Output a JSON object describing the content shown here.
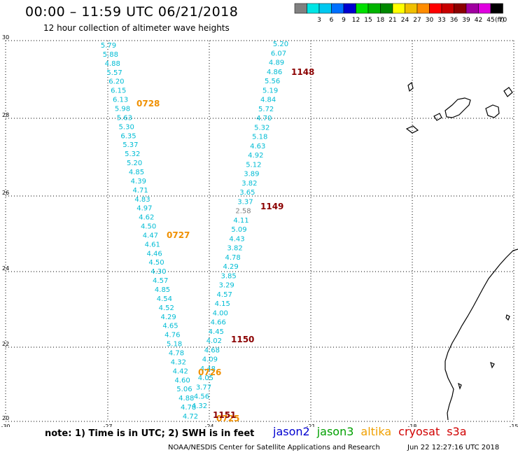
{
  "header": {
    "title": "00:00 – 11:59 UTC 06/21/2018",
    "subtitle": "12 hour collection of altimeter wave heights"
  },
  "color_scale": {
    "bins": [
      {
        "label": "",
        "color": "#808080"
      },
      {
        "label": "3",
        "color": "#00e5e5"
      },
      {
        "label": "6",
        "color": "#00c8f0"
      },
      {
        "label": "9",
        "color": "#0070ff"
      },
      {
        "label": "12",
        "color": "#0000d0"
      },
      {
        "label": "15",
        "color": "#00e000"
      },
      {
        "label": "18",
        "color": "#00b400"
      },
      {
        "label": "21",
        "color": "#008800"
      },
      {
        "label": "24",
        "color": "#ffff00"
      },
      {
        "label": "27",
        "color": "#f0c000"
      },
      {
        "label": "30",
        "color": "#ff8c00"
      },
      {
        "label": "33",
        "color": "#ff0000"
      },
      {
        "label": "36",
        "color": "#c80000"
      },
      {
        "label": "39",
        "color": "#8b0000"
      },
      {
        "label": "42",
        "color": "#a000a0"
      },
      {
        "label": "45",
        "color": "#e000e0"
      },
      {
        "label": "70",
        "color": "#000000"
      }
    ],
    "unit": "(ft)"
  },
  "axes": {
    "lon_ticks": [
      "-30",
      "-27",
      "-24",
      "-21",
      "-18",
      "-15"
    ],
    "lat_ticks": [
      "30",
      "28",
      "26",
      "24",
      "22",
      "20"
    ]
  },
  "tracks": {
    "west_track": {
      "color": "#00bcd4",
      "values": [
        "5.79",
        "5.88",
        "4.88",
        "5.57",
        "6.20",
        "6.15",
        "6.13",
        "5.98",
        "5.63",
        "5.30",
        "6.35",
        "5.37",
        "5.32",
        "5.20",
        "4.85",
        "4.39",
        "4.71",
        "4.83",
        "4.97",
        "4.62",
        "4.50",
        "4.47",
        "4.61",
        "4.46",
        "4.50",
        "4.30",
        "4.57",
        "4.85",
        "4.54",
        "4.52",
        "4.29",
        "4.65",
        "4.76",
        "5.18",
        "4.78",
        "4.32",
        "4.42",
        "4.60",
        "5.06",
        "4.88",
        "4.78",
        "4.72"
      ],
      "times": [
        {
          "label": "0728",
          "color": "#f09000"
        },
        {
          "label": "0727",
          "color": "#f09000"
        },
        {
          "label": "0726",
          "color": "#f09000"
        },
        {
          "label": "0725",
          "color": "#f09000"
        }
      ]
    },
    "east_track": {
      "color": "#00bcd4",
      "values": [
        "5.20",
        "6.07",
        "4.89",
        "4.86",
        "5.56",
        "5.19",
        "4.84",
        "5.72",
        "4.70",
        "5.32",
        "5.18",
        "4.63",
        "4.92",
        "5.12",
        "3.89",
        "3.82",
        "3.65",
        "3.37",
        "2.58",
        "4.11",
        "5.09",
        "4.43",
        "3.82",
        "4.78",
        "4.29",
        "3.85",
        "3.29",
        "4.57",
        "4.15",
        "4.00",
        "4.66",
        "4.45",
        "4.02",
        "4.68",
        "4.09",
        "4.48",
        "4.05",
        "3.77",
        "4.56",
        "4.32"
      ],
      "special_value_color": "#808080",
      "times": [
        {
          "label": "1148",
          "color": "#8b0000"
        },
        {
          "label": "1149",
          "color": "#8b0000"
        },
        {
          "label": "1150",
          "color": "#8b0000"
        },
        {
          "label": "1151",
          "color": "#8b0000"
        }
      ]
    }
  },
  "footer": {
    "note": "note: 1) Time is in UTC; 2) SWH is in feet",
    "satellites": [
      {
        "label": "jason2",
        "color": "#0000d0"
      },
      {
        "label": "jason3",
        "color": "#00a000"
      },
      {
        "label": "altika",
        "color": "#f0a000"
      },
      {
        "label": "cryosat",
        "color": "#d00000"
      },
      {
        "label": "s3a",
        "color": "#d00000"
      }
    ],
    "credit": "NOAA/NESDIS Center for Satellite Applications and Research",
    "timestamp": "Jun 22 12:27:16 UTC 2018"
  }
}
